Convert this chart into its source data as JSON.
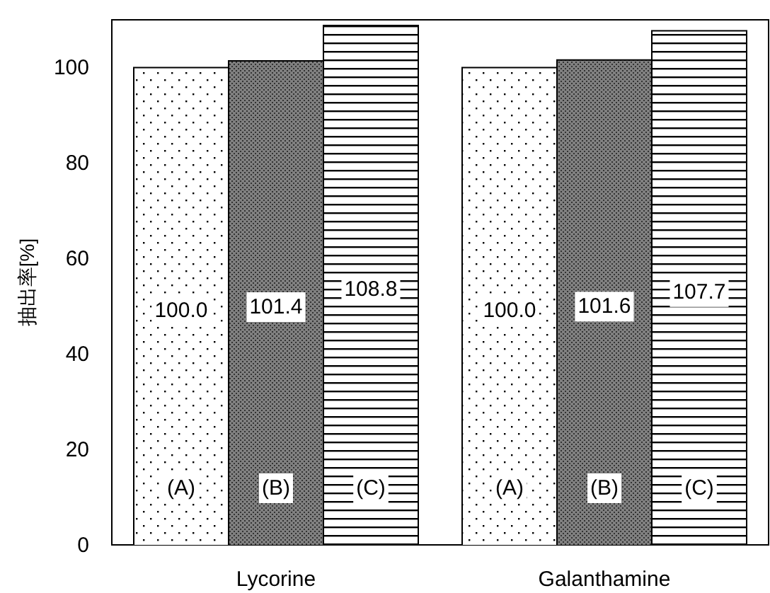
{
  "chart_data": {
    "type": "bar",
    "ylabel": "抽出率[%]",
    "categories": [
      "Lycorine",
      "Galanthamine"
    ],
    "series": [
      {
        "name": "(A)",
        "color": "#ffffff",
        "values": [
          100.0,
          100.0
        ],
        "value_labels": [
          "100.0",
          "100.0"
        ]
      },
      {
        "name": "(B)",
        "color": "#808080",
        "values": [
          101.4,
          101.6
        ],
        "value_labels": [
          "101.4",
          "101.6"
        ]
      },
      {
        "name": "(C)",
        "color": "#ffffff",
        "values": [
          108.8,
          107.7
        ],
        "value_labels": [
          "108.8",
          "107.7"
        ]
      }
    ],
    "ylim": [
      0,
      110
    ],
    "yticks": [
      0,
      20,
      40,
      60,
      80,
      100
    ],
    "grid": false
  }
}
